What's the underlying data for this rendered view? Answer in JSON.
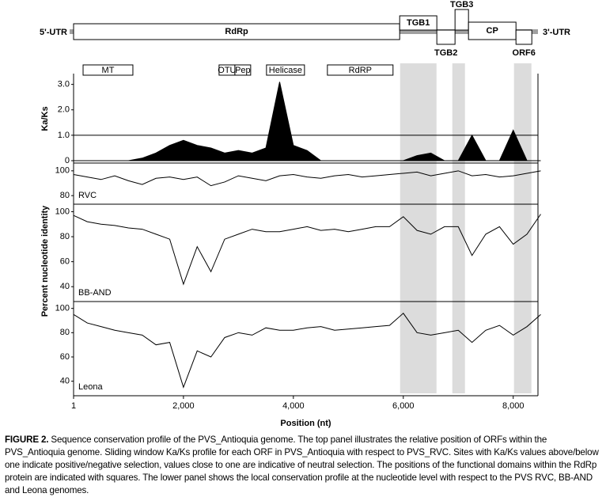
{
  "genome_map": {
    "utr5": "5'-UTR",
    "utr3": "3'-UTR",
    "orfs": [
      {
        "label": "RdRp",
        "start": 1,
        "end": 5934
      },
      {
        "label": "TGB1",
        "start": 5934,
        "end": 6610
      },
      {
        "label": "TGB2",
        "start": 6610,
        "end": 6941
      },
      {
        "label": "TGB3",
        "start": 6941,
        "end": 7186
      },
      {
        "label": "CP",
        "start": 7186,
        "end": 8050
      },
      {
        "label": "ORF6",
        "start": 8050,
        "end": 8338
      }
    ],
    "domains": [
      {
        "label": "MT",
        "start": 174,
        "end": 1080
      },
      {
        "label": "OTU",
        "start": 2648,
        "end": 2936
      },
      {
        "label": "Pep",
        "start": 2936,
        "end": 3223
      },
      {
        "label": "Helicase",
        "start": 3511,
        "end": 4202
      },
      {
        "label": "RdRP",
        "start": 4619,
        "end": 5813
      }
    ]
  },
  "highlight_regions": [
    [
      5942,
      6604
    ],
    [
      6892,
      7122
    ],
    [
      8014,
      8331
    ]
  ],
  "shared_ylabel": "Percent nucleotide identity",
  "chart_data": [
    {
      "type": "area",
      "ylabel": "Ka/Ks",
      "xlim": [
        1,
        8450
      ],
      "ylim": [
        0,
        3.3
      ],
      "yticks": [
        0,
        {
          "value": 1,
          "label": "1.0"
        },
        {
          "value": 2,
          "label": "2.0"
        },
        {
          "value": 3,
          "label": "3.0"
        }
      ],
      "reference_line": 1,
      "x": [
        1,
        250,
        500,
        750,
        1000,
        1250,
        1500,
        1750,
        2000,
        2250,
        2500,
        2750,
        3000,
        3250,
        3500,
        3750,
        4000,
        4250,
        4500,
        4750,
        5000,
        5250,
        5500,
        5750,
        6000,
        6250,
        6500,
        6750,
        7000,
        7250,
        7500,
        7750,
        8000,
        8250,
        8500
      ],
      "series": [
        {
          "color": "#000000",
          "values": [
            0,
            0,
            0,
            0,
            0,
            0.1,
            0.3,
            0.6,
            0.8,
            0.6,
            0.5,
            0.3,
            0.4,
            0.3,
            0.5,
            3.1,
            0.6,
            0.4,
            0,
            0,
            0,
            0,
            0,
            0,
            0,
            0.2,
            0.3,
            0,
            0,
            1.0,
            0,
            0,
            1.2,
            0,
            0
          ]
        }
      ]
    },
    {
      "type": "line",
      "xlim": [
        1,
        8450
      ],
      "ylim": [
        75,
        105
      ],
      "yticks": [
        80,
        100
      ],
      "x": [
        1,
        250,
        500,
        750,
        1000,
        1250,
        1500,
        1750,
        2000,
        2250,
        2500,
        2750,
        3000,
        3250,
        3500,
        3750,
        4000,
        4250,
        4500,
        4750,
        5000,
        5250,
        5500,
        5750,
        6000,
        6250,
        6500,
        6750,
        7000,
        7250,
        7500,
        7750,
        8000,
        8250,
        8500
      ],
      "series": [
        {
          "name": "RVC",
          "color": "#000000",
          "values": [
            97,
            95,
            93,
            96,
            92,
            89,
            94,
            95,
            93,
            95,
            88,
            91,
            96,
            94,
            92,
            96,
            97,
            95,
            94,
            96,
            97,
            95,
            96,
            97,
            98,
            99,
            96,
            98,
            100,
            96,
            97,
            95,
            96,
            98,
            100
          ]
        }
      ]
    },
    {
      "type": "line",
      "xlim": [
        1,
        8450
      ],
      "ylim": [
        30,
        106
      ],
      "yticks": [
        40,
        60,
        80,
        100
      ],
      "x": [
        1,
        250,
        500,
        750,
        1000,
        1250,
        1500,
        1750,
        2000,
        2250,
        2500,
        2750,
        3000,
        3250,
        3500,
        3750,
        4000,
        4250,
        4500,
        4750,
        5000,
        5250,
        5500,
        5750,
        6000,
        6250,
        6500,
        6750,
        7000,
        7250,
        7500,
        7750,
        8000,
        8250,
        8500
      ],
      "series": [
        {
          "name": "BB-AND",
          "color": "#000000",
          "values": [
            97,
            92,
            90,
            89,
            87,
            86,
            82,
            78,
            42,
            72,
            52,
            78,
            82,
            86,
            84,
            84,
            86,
            88,
            85,
            86,
            84,
            86,
            88,
            88,
            96,
            85,
            82,
            88,
            88,
            65,
            82,
            88,
            74,
            82,
            98
          ]
        }
      ]
    },
    {
      "type": "line",
      "xlabel": "Position (nt)",
      "xlim": [
        1,
        8450
      ],
      "ylim": [
        30,
        105
      ],
      "yticks": [
        40,
        60,
        80,
        100
      ],
      "xticks": [
        1,
        {
          "value": 2000,
          "label": "2,000"
        },
        {
          "value": 4000,
          "label": "4,000"
        },
        {
          "value": 6000,
          "label": "6,000"
        },
        {
          "value": 8000,
          "label": "8,000"
        }
      ],
      "x": [
        1,
        250,
        500,
        750,
        1000,
        1250,
        1500,
        1750,
        2000,
        2250,
        2500,
        2750,
        3000,
        3250,
        3500,
        3750,
        4000,
        4250,
        4500,
        4750,
        5000,
        5250,
        5500,
        5750,
        6000,
        6250,
        6500,
        6750,
        7000,
        7250,
        7500,
        7750,
        8000,
        8250,
        8500
      ],
      "series": [
        {
          "name": "Leona",
          "color": "#000000",
          "values": [
            95,
            88,
            85,
            82,
            80,
            78,
            70,
            72,
            35,
            65,
            60,
            76,
            80,
            78,
            84,
            82,
            82,
            84,
            85,
            82,
            83,
            84,
            85,
            86,
            96,
            80,
            78,
            80,
            82,
            72,
            82,
            86,
            78,
            85,
            95
          ]
        }
      ]
    }
  ],
  "caption": {
    "label": "FIGURE 2.",
    "text": "Sequence conservation profile of the PVS_Antioquia genome. The top panel illustrates the relative position of ORFs within the PVS_Antioquia genome. Sliding window Ka/Ks profile for each ORF in PVS_Antioquia with respect to PVS_RVC. Sites with Ka/Ks values above/below one indicate positive/negative selection, values close to one are indicative of neutral selection. The positions of the functional domains within the RdRp protein are indicated with squares. The lower panel shows the local conservation profile at the nucleotide level with respect to the PVS RVC, BB-AND and Leona genomes."
  }
}
